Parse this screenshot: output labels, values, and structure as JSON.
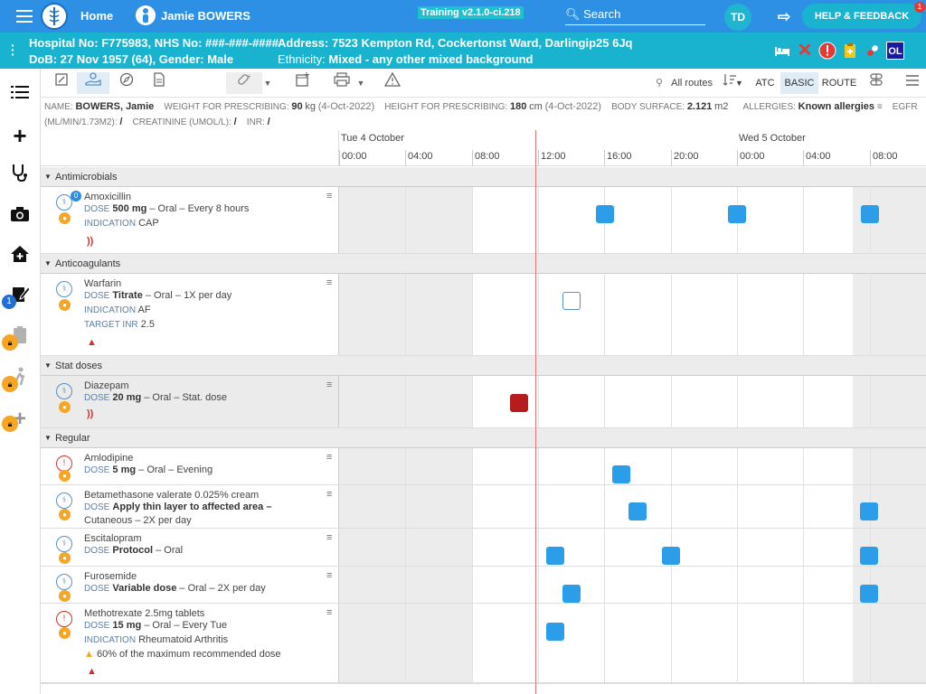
{
  "header": {
    "home_label": "Home",
    "user_name": "Jamie BOWERS",
    "training_label": "Training v2.1.0-ci.218",
    "search_label": "Search",
    "initials": "TD",
    "help_label": "HELP & FEEDBACK",
    "help_badge": "1"
  },
  "patient": {
    "line1_a": "Hospital No: F775983, NHS No: ###-###-####",
    "line1_b": "Address: 7523 Kempton Rd, Cockertonst Ward, Darlingip25 6Jq",
    "line2_a": "DoB: 27 Nov 1957 (64), Gender: Male",
    "line2_b_key": "Ethnicity:",
    "line2_b_val": "Mixed - any other mixed background",
    "ol_badge": "OL"
  },
  "sidebar": {
    "tasks_badge": "1"
  },
  "toolbar": {
    "routes_label": "All routes",
    "atc": "ATC",
    "basic": "BASIC",
    "route": "ROUTE"
  },
  "info": {
    "name_key": "NAME:",
    "name_val": "BOWERS, Jamie",
    "weight_key": "WEIGHT FOR PRESCRIBING:",
    "weight_val": "90",
    "weight_unit": "kg",
    "weight_date": "(4-Oct-2022)",
    "height_key": "HEIGHT FOR PRESCRIBING:",
    "height_val": "180",
    "height_unit": "cm",
    "height_date": "(4-Oct-2022)",
    "bsa_key": "BODY SURFACE:",
    "bsa_val": "2.121",
    "bsa_unit": "m2",
    "allergies_key": "ALLERGIES:",
    "allergies_val": "Known allergies",
    "egfr_key": "EGFR",
    "egfr_unit": "(ML/MIN/1.73M2):",
    "egfr_val": "/",
    "creat_key": "CREATININE (UMOL/L):",
    "creat_val": "/",
    "inr_key": "INR:",
    "inr_val": "/"
  },
  "timeline": {
    "date1": "Tue 4 October",
    "date2": "Wed 5 October",
    "ticks": [
      "00:00",
      "04:00",
      "08:00",
      "12:00",
      "16:00",
      "20:00",
      "00:00",
      "04:00",
      "08:00"
    ]
  },
  "sections": {
    "antimicrobials": "Antimicrobials",
    "anticoagulants": "Anticoagulants",
    "stat": "Stat doses",
    "regular": "Regular"
  },
  "labels": {
    "dose": "DOSE",
    "indication": "INDICATION",
    "target_inr": "TARGET INR"
  },
  "meds": {
    "amoxicillin": {
      "name": "Amoxicillin",
      "badge": "0",
      "dose": "500 mg",
      "rest": " – Oral – Every 8 hours",
      "indication": "CAP"
    },
    "warfarin": {
      "name": "Warfarin",
      "dose": "Titrate",
      "rest": " – Oral – 1X per day",
      "indication": "AF",
      "target_inr": "2.5"
    },
    "diazepam": {
      "name": "Diazepam",
      "dose": "20 mg",
      "rest": " – Oral – Stat. dose"
    },
    "amlodipine": {
      "name": "Amlodipine",
      "dose": "5 mg",
      "rest": " – Oral – Evening"
    },
    "betamethasone": {
      "name": "Betamethasone valerate 0.025% cream",
      "dose": "Apply thin layer to affected area –",
      "line2": "Cutaneous – 2X per day"
    },
    "escitalopram": {
      "name": "Escitalopram",
      "dose": "Protocol",
      "rest": " – Oral"
    },
    "furosemide": {
      "name": "Furosemide",
      "dose": "Variable dose",
      "rest": " – Oral – 2X per day"
    },
    "methotrexate": {
      "name": "Methotrexate 2.5mg tablets",
      "dose": "15 mg",
      "rest": " – Oral – Every Tue",
      "indication": "Rheumatoid Arthritis",
      "warning": "60% of the maximum recommended dose"
    }
  },
  "colors": {
    "topbar": "#2e90e5",
    "patient_bar": "#19b3cf",
    "dose_given": "#2b9de9",
    "dose_stat": "#b71c1c",
    "now_line": "#e57373"
  }
}
